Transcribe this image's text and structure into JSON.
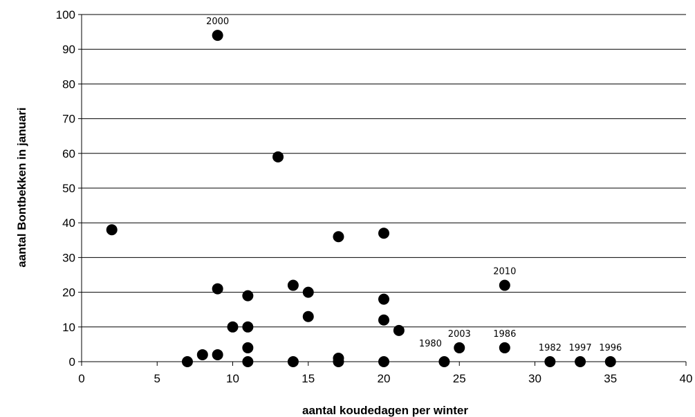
{
  "chart_data": {
    "type": "scatter",
    "xlabel": "aantal koudedagen per winter",
    "ylabel": "aantal Bontbekken in januari",
    "xlim": [
      0,
      40
    ],
    "ylim": [
      0,
      100
    ],
    "xticks": [
      0,
      5,
      10,
      15,
      20,
      25,
      30,
      35,
      40
    ],
    "yticks": [
      0,
      10,
      20,
      30,
      40,
      50,
      60,
      70,
      80,
      90,
      100
    ],
    "grid": "horizontal",
    "marker_color": "#000000",
    "points": [
      {
        "x": 2,
        "y": 38
      },
      {
        "x": 7,
        "y": 0
      },
      {
        "x": 8,
        "y": 2
      },
      {
        "x": 9,
        "y": 94,
        "label": "2000"
      },
      {
        "x": 9,
        "y": 21
      },
      {
        "x": 9,
        "y": 2
      },
      {
        "x": 10,
        "y": 10
      },
      {
        "x": 11,
        "y": 19
      },
      {
        "x": 11,
        "y": 10
      },
      {
        "x": 11,
        "y": 4
      },
      {
        "x": 11,
        "y": 0
      },
      {
        "x": 13,
        "y": 59
      },
      {
        "x": 14,
        "y": 22
      },
      {
        "x": 14,
        "y": 0
      },
      {
        "x": 15,
        "y": 20
      },
      {
        "x": 15,
        "y": 13
      },
      {
        "x": 17,
        "y": 36
      },
      {
        "x": 17,
        "y": 1
      },
      {
        "x": 17,
        "y": 0
      },
      {
        "x": 20,
        "y": 37
      },
      {
        "x": 20,
        "y": 18
      },
      {
        "x": 20,
        "y": 12
      },
      {
        "x": 20,
        "y": 0
      },
      {
        "x": 21,
        "y": 9
      },
      {
        "x": 24,
        "y": 0,
        "label": "1980"
      },
      {
        "x": 25,
        "y": 4,
        "label": "2003"
      },
      {
        "x": 28,
        "y": 22,
        "label": "2010"
      },
      {
        "x": 28,
        "y": 4,
        "label": "1986"
      },
      {
        "x": 31,
        "y": 0,
        "label": "1982"
      },
      {
        "x": 33,
        "y": 0,
        "label": "1997"
      },
      {
        "x": 35,
        "y": 0,
        "label": "1996"
      }
    ]
  }
}
